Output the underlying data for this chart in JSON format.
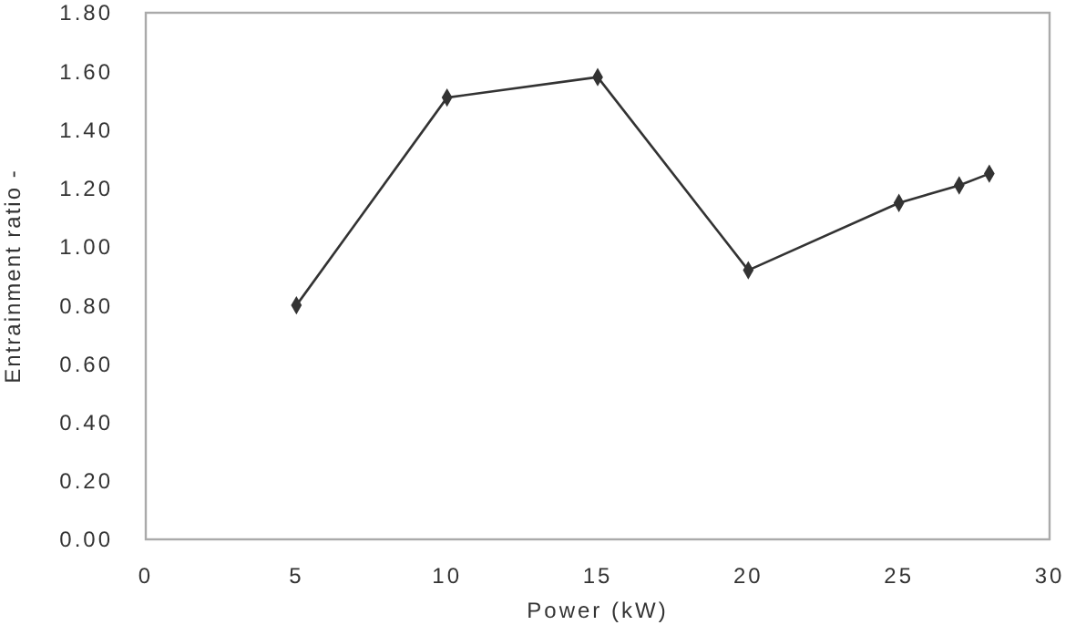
{
  "chart_data": {
    "type": "line",
    "xlabel": "Power (kW)",
    "ylabel": "Entrainment ratio  -",
    "x": [
      5,
      10,
      15,
      20,
      25,
      27,
      28
    ],
    "series": [
      {
        "color": "#333333",
        "values": [
          0.8,
          1.51,
          1.58,
          0.92,
          1.15,
          1.21,
          1.25
        ]
      }
    ],
    "xlim": [
      0,
      30
    ],
    "xticks": [
      0,
      5,
      10,
      15,
      20,
      25,
      30
    ],
    "ylim": [
      0,
      1.8
    ],
    "yticks": [
      {
        "value": 0,
        "label": "0.00"
      },
      {
        "value": 0.2,
        "label": "0.20"
      },
      {
        "value": 0.4,
        "label": "0.40"
      },
      {
        "value": 0.6,
        "label": "0.60"
      },
      {
        "value": 0.8,
        "label": "0.80"
      },
      {
        "value": 1,
        "label": "1.00"
      },
      {
        "value": 1.2,
        "label": "1.20"
      },
      {
        "value": 1.4,
        "label": "1.40"
      },
      {
        "value": 1.6,
        "label": "1.60"
      },
      {
        "value": 1.8,
        "label": "1.80"
      }
    ],
    "grid": false,
    "marker": "diamond",
    "line_style": "solid"
  }
}
